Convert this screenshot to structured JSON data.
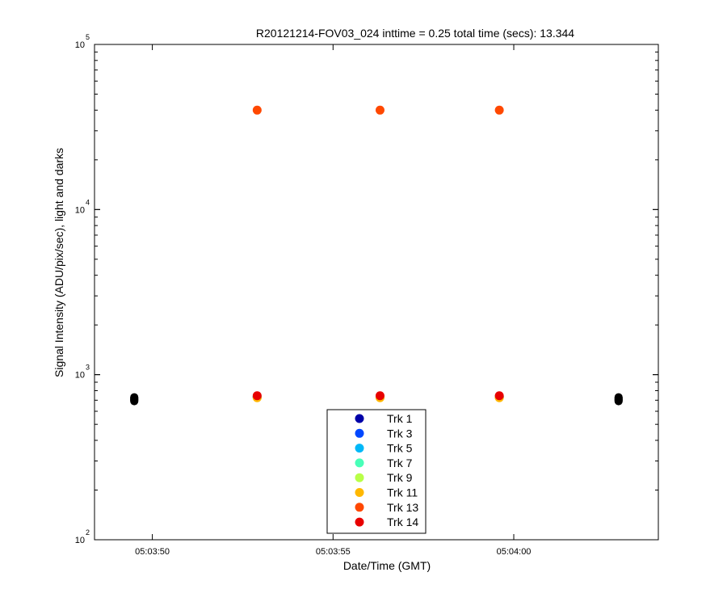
{
  "chart_data": {
    "type": "scatter",
    "title": "R20121214-FOV03_024 inttime = 0.25 total time (secs): 13.344",
    "xlabel": "Date/Time (GMT)",
    "ylabel": "Signal Intensity (ADU/pix/sec), light and darks",
    "y_scale": "log",
    "ylim": [
      100,
      100000
    ],
    "y_ticks": [
      {
        "base": "10",
        "exp": "2",
        "value": 100
      },
      {
        "base": "10",
        "exp": "3",
        "value": 1000
      },
      {
        "base": "10",
        "exp": "4",
        "value": 10000
      },
      {
        "base": "10",
        "exp": "5",
        "value": 100000
      }
    ],
    "xlim": [
      "05:03:48.4",
      "05:04:04.0"
    ],
    "x_ticks": [
      "05:03:50",
      "05:03:55",
      "05:04:00"
    ],
    "grid": false,
    "legend_position": "bottom-center",
    "series": [
      {
        "name": "Trk 1",
        "color": "#0000a8",
        "x": [
          "05:03:52.9",
          "05:03:56.3",
          "05:03:59.6"
        ],
        "y": [
          730,
          730,
          730
        ]
      },
      {
        "name": "Trk 3",
        "color": "#0048ff",
        "x": [
          "05:03:52.9",
          "05:03:56.3",
          "05:03:59.6"
        ],
        "y": [
          732,
          732,
          732
        ]
      },
      {
        "name": "Trk 5",
        "color": "#00b8f8",
        "x": [
          "05:03:52.9",
          "05:03:56.3",
          "05:03:59.6"
        ],
        "y": [
          734,
          734,
          734
        ]
      },
      {
        "name": "Trk 7",
        "color": "#48ffb8",
        "x": [
          "05:03:52.9",
          "05:03:56.3",
          "05:03:59.6"
        ],
        "y": [
          736,
          736,
          736
        ]
      },
      {
        "name": "Trk 9",
        "color": "#b8ff48",
        "x": [
          "05:03:52.9",
          "05:03:56.3",
          "05:03:59.6"
        ],
        "y": [
          735,
          735,
          735
        ]
      },
      {
        "name": "Trk 11",
        "color": "#ffb800",
        "x": [
          "05:03:52.9",
          "05:03:56.3",
          "05:03:59.6"
        ],
        "y": [
          725,
          725,
          725
        ]
      },
      {
        "name": "Trk 13",
        "color": "#ff4800",
        "x": [
          "05:03:52.9",
          "05:03:56.3",
          "05:03:59.6"
        ],
        "y": [
          40000,
          40000,
          40000
        ]
      },
      {
        "name": "Trk 14",
        "color": "#e80000",
        "x": [
          "05:03:52.9",
          "05:03:56.3",
          "05:03:59.6"
        ],
        "y": [
          745,
          745,
          745
        ]
      }
    ],
    "dark_points": {
      "color": "#000000",
      "x": [
        "05:03:49.5",
        "05:04:02.9"
      ],
      "y_range": [
        690,
        730
      ]
    }
  }
}
